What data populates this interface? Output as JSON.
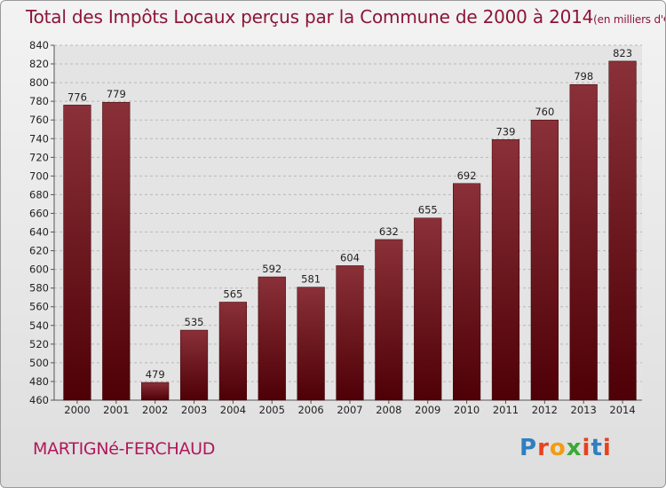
{
  "title": {
    "main": "Total des Impôts Locaux perçus par la Commune de 2000 à 2014",
    "unit": "(en milliers d'€)"
  },
  "commune": "MARTIGNé-FERCHAUD",
  "logo": {
    "letters": [
      "P",
      "r",
      "o",
      "x",
      "i",
      "t",
      "i"
    ]
  },
  "colors": {
    "bar_dark": "#4e0006",
    "bar_light": "#8a3038",
    "title": "#8b1538",
    "commune": "#b0185a"
  },
  "chart_data": {
    "type": "bar",
    "title": "Total des Impôts Locaux perçus par la Commune de 2000 à 2014",
    "xlabel": "",
    "ylabel": "",
    "categories": [
      "2000",
      "2001",
      "2002",
      "2003",
      "2004",
      "2005",
      "2006",
      "2007",
      "2008",
      "2009",
      "2010",
      "2011",
      "2012",
      "2013",
      "2014"
    ],
    "values": [
      776,
      779,
      479,
      535,
      565,
      592,
      581,
      604,
      632,
      655,
      692,
      739,
      760,
      798,
      823
    ],
    "ylim": [
      460,
      840
    ],
    "yticks": [
      460,
      480,
      500,
      520,
      540,
      560,
      580,
      600,
      620,
      640,
      660,
      680,
      700,
      720,
      740,
      760,
      780,
      800,
      820,
      840
    ],
    "grid": true
  }
}
